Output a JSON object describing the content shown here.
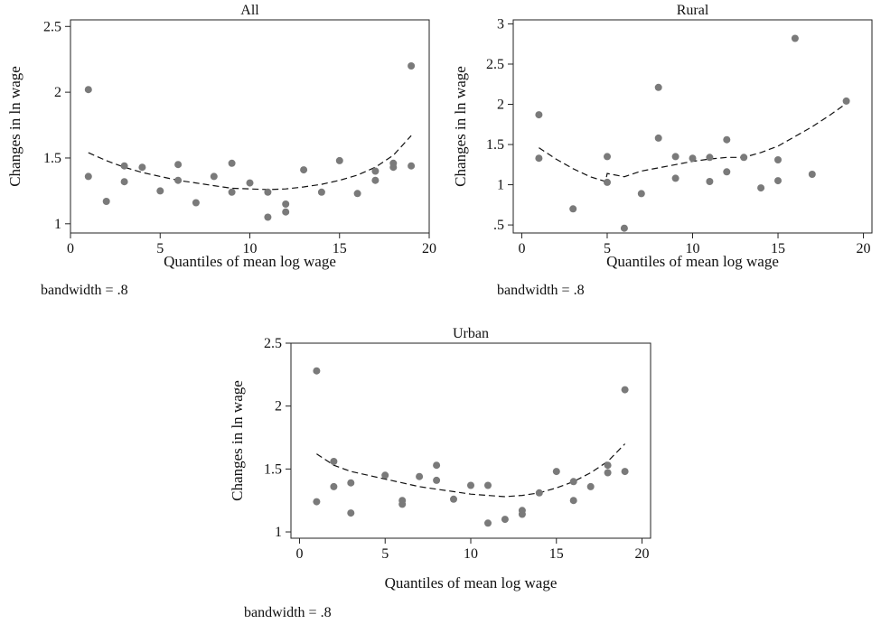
{
  "chart_data": [
    {
      "type": "scatter",
      "title": "All",
      "xlabel": "Quantiles of mean log wage",
      "ylabel": "Changes in ln wage",
      "note": "bandwidth = .8",
      "xlim": [
        0,
        20
      ],
      "ylim": [
        0.93,
        2.55
      ],
      "xticks": [
        0,
        5,
        10,
        15,
        20
      ],
      "yticks": [
        1,
        1.5,
        2,
        2.5
      ],
      "ytick_labels": [
        "1",
        "1.5",
        "2",
        "2.5"
      ],
      "grid": false,
      "point_color": "#7a7a7a",
      "points": [
        [
          1,
          2.02
        ],
        [
          1,
          1.36
        ],
        [
          2,
          1.17
        ],
        [
          3,
          1.44
        ],
        [
          3,
          1.32
        ],
        [
          4,
          1.43
        ],
        [
          5,
          1.25
        ],
        [
          6,
          1.45
        ],
        [
          6,
          1.33
        ],
        [
          7,
          1.16
        ],
        [
          8,
          1.36
        ],
        [
          9,
          1.46
        ],
        [
          9,
          1.24
        ],
        [
          10,
          1.31
        ],
        [
          11,
          1.24
        ],
        [
          11,
          1.05
        ],
        [
          12,
          1.15
        ],
        [
          12,
          1.09
        ],
        [
          13,
          1.41
        ],
        [
          14,
          1.24
        ],
        [
          15,
          1.48
        ],
        [
          16,
          1.23
        ],
        [
          17,
          1.4
        ],
        [
          17,
          1.33
        ],
        [
          18,
          1.46
        ],
        [
          18,
          1.43
        ],
        [
          19,
          2.2
        ],
        [
          19,
          1.44
        ]
      ],
      "fit": [
        [
          1,
          1.54
        ],
        [
          2,
          1.48
        ],
        [
          3,
          1.43
        ],
        [
          4,
          1.39
        ],
        [
          5,
          1.36
        ],
        [
          6,
          1.33
        ],
        [
          7,
          1.31
        ],
        [
          8,
          1.29
        ],
        [
          9,
          1.27
        ],
        [
          10,
          1.265
        ],
        [
          11,
          1.26
        ],
        [
          12,
          1.265
        ],
        [
          13,
          1.28
        ],
        [
          14,
          1.3
        ],
        [
          15,
          1.33
        ],
        [
          16,
          1.37
        ],
        [
          17,
          1.43
        ],
        [
          18,
          1.52
        ],
        [
          19,
          1.67
        ]
      ]
    },
    {
      "type": "scatter",
      "title": "Rural",
      "xlabel": "Quantiles of mean log wage",
      "ylabel": "Changes in ln wage",
      "note": "bandwidth = .8",
      "xlim": [
        -0.5,
        20.5
      ],
      "ylim": [
        0.4,
        3.05
      ],
      "xticks": [
        0,
        5,
        10,
        15,
        20
      ],
      "yticks": [
        0.5,
        1,
        1.5,
        2,
        2.5,
        3
      ],
      "ytick_labels": [
        ".5",
        "1",
        "1.5",
        "2",
        "2.5",
        "3"
      ],
      "grid": false,
      "point_color": "#7a7a7a",
      "points": [
        [
          1,
          1.87
        ],
        [
          1,
          1.33
        ],
        [
          3,
          0.7
        ],
        [
          5,
          1.35
        ],
        [
          5,
          1.03
        ],
        [
          6,
          0.46
        ],
        [
          7,
          0.89
        ],
        [
          8,
          2.21
        ],
        [
          8,
          1.58
        ],
        [
          9,
          1.35
        ],
        [
          9,
          1.08
        ],
        [
          10,
          1.33
        ],
        [
          11,
          1.34
        ],
        [
          11,
          1.04
        ],
        [
          12,
          1.56
        ],
        [
          12,
          1.16
        ],
        [
          13,
          1.34
        ],
        [
          14,
          0.96
        ],
        [
          15,
          1.31
        ],
        [
          15,
          1.05
        ],
        [
          16,
          2.82
        ],
        [
          17,
          1.13
        ],
        [
          19,
          2.04
        ]
      ],
      "fit": [
        [
          1,
          1.46
        ],
        [
          2,
          1.32
        ],
        [
          3,
          1.2
        ],
        [
          4,
          1.1
        ],
        [
          4.9,
          1.04
        ],
        [
          5,
          1.14
        ],
        [
          6,
          1.1
        ],
        [
          7,
          1.17
        ],
        [
          8,
          1.21
        ],
        [
          9,
          1.25
        ],
        [
          10,
          1.29
        ],
        [
          11,
          1.32
        ],
        [
          12,
          1.34
        ],
        [
          13,
          1.34
        ],
        [
          14,
          1.4
        ],
        [
          15,
          1.48
        ],
        [
          16,
          1.6
        ],
        [
          17,
          1.72
        ],
        [
          18,
          1.86
        ],
        [
          19,
          2.01
        ]
      ]
    },
    {
      "type": "scatter",
      "title": "Urban",
      "xlabel": "Quantiles of mean log wage",
      "ylabel": "Changes in ln wage",
      "note": "bandwidth = .8",
      "xlim": [
        -0.5,
        20.5
      ],
      "ylim": [
        0.95,
        2.5
      ],
      "xticks": [
        0,
        5,
        10,
        15,
        20
      ],
      "yticks": [
        1,
        1.5,
        2,
        2.5
      ],
      "ytick_labels": [
        "1",
        "1.5",
        "2",
        "2.5"
      ],
      "grid": false,
      "point_color": "#7a7a7a",
      "points": [
        [
          1,
          2.28
        ],
        [
          1,
          1.24
        ],
        [
          2,
          1.56
        ],
        [
          2,
          1.36
        ],
        [
          3,
          1.39
        ],
        [
          3,
          1.15
        ],
        [
          5,
          1.45
        ],
        [
          6,
          1.25
        ],
        [
          6,
          1.22
        ],
        [
          7,
          1.44
        ],
        [
          8,
          1.53
        ],
        [
          8,
          1.41
        ],
        [
          9,
          1.26
        ],
        [
          10,
          1.37
        ],
        [
          11,
          1.37
        ],
        [
          11,
          1.07
        ],
        [
          12,
          1.1
        ],
        [
          13,
          1.17
        ],
        [
          13,
          1.14
        ],
        [
          14,
          1.31
        ],
        [
          15,
          1.48
        ],
        [
          16,
          1.4
        ],
        [
          16,
          1.25
        ],
        [
          17,
          1.36
        ],
        [
          18,
          1.53
        ],
        [
          18,
          1.47
        ],
        [
          19,
          2.13
        ],
        [
          19,
          1.48
        ]
      ],
      "fit": [
        [
          1,
          1.62
        ],
        [
          2,
          1.53
        ],
        [
          3,
          1.48
        ],
        [
          4,
          1.45
        ],
        [
          5,
          1.42
        ],
        [
          6,
          1.39
        ],
        [
          7,
          1.36
        ],
        [
          8,
          1.34
        ],
        [
          9,
          1.32
        ],
        [
          10,
          1.3
        ],
        [
          11,
          1.29
        ],
        [
          12,
          1.28
        ],
        [
          13,
          1.29
        ],
        [
          14,
          1.31
        ],
        [
          15,
          1.35
        ],
        [
          16,
          1.4
        ],
        [
          17,
          1.47
        ],
        [
          18,
          1.56
        ],
        [
          19,
          1.7
        ]
      ]
    }
  ]
}
